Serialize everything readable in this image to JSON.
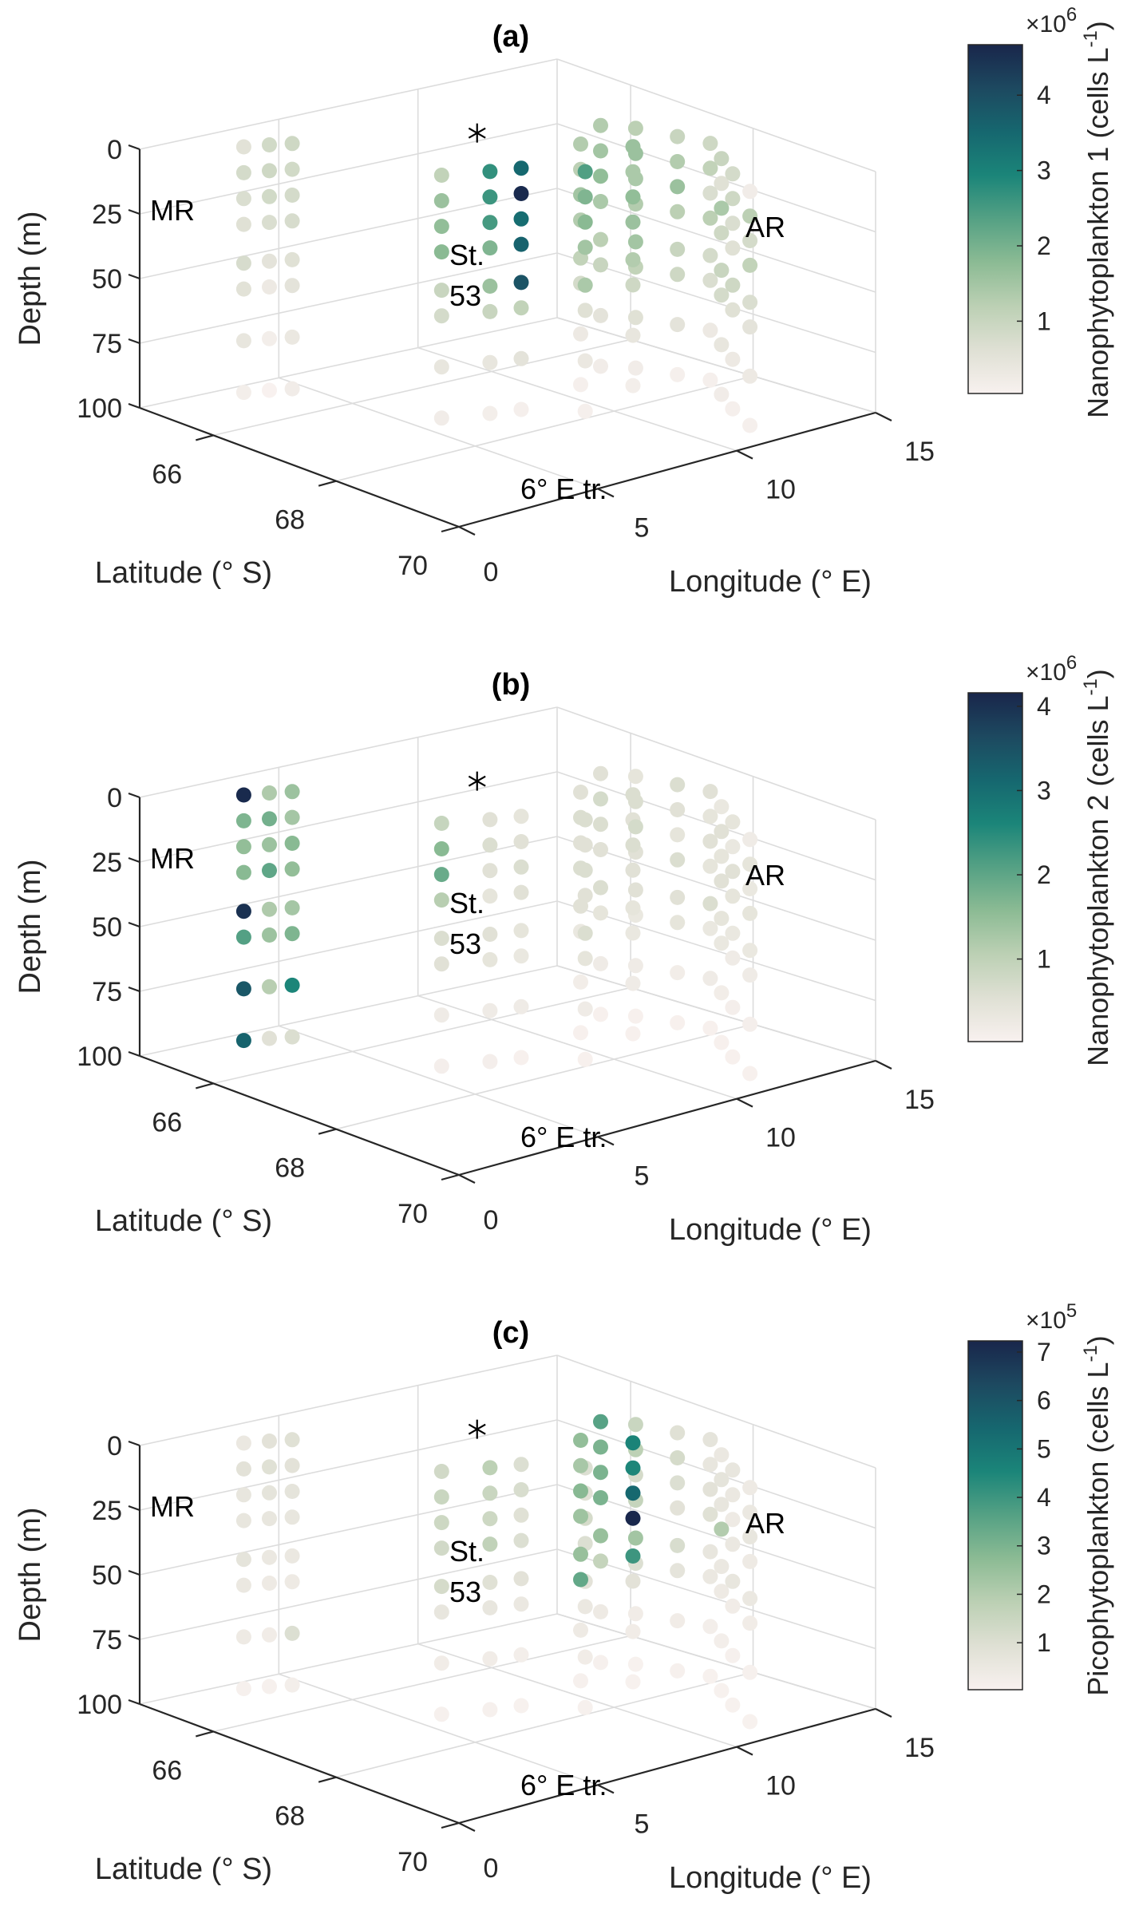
{
  "figure": {
    "panels": [
      "a",
      "b",
      "c"
    ]
  },
  "chart_data": [
    {
      "type": "scatter",
      "subtype": "3d-scatter",
      "title": "(a)",
      "xlabel": "Latitude (° S)",
      "ylabel": "Longitude (° E)",
      "zlabel": "Depth (m)",
      "xlim": [
        64.8,
        70
      ],
      "ylim": [
        0,
        15
      ],
      "zlim": [
        0,
        100
      ],
      "z_reversed": true,
      "xticks": [
        "66",
        "68",
        "70"
      ],
      "yticks": [
        "0",
        "5",
        "10",
        "15"
      ],
      "zticks": [
        "0",
        "25",
        "50",
        "75",
        "100"
      ],
      "grid": true,
      "colorbar": {
        "label": "Nanophytoplankton 1 (cells L",
        "label_sup": "-1",
        "label_end": ")",
        "exponent_label": "×10",
        "exponent": "6",
        "range": [
          0.04,
          4.67
        ],
        "ticks": [
          "1",
          "2",
          "3",
          "4"
        ],
        "placement": "right"
      },
      "annotations": [
        {
          "text": "MR"
        },
        {
          "text": "AR"
        },
        {
          "text": "St."
        },
        {
          "text": "53"
        },
        {
          "text": "6° E tr."
        },
        {
          "text": "✳",
          "role": "marker"
        }
      ],
      "values_by_station": {
        "MR1": [
          0.9,
          0.85,
          0.8,
          0.75,
          0.6,
          0.5,
          0.35,
          0.2
        ],
        "MR2": [
          0.55,
          0.8,
          0.7,
          0.6,
          0.75,
          0.55,
          0.4,
          0.15
        ],
        "MR3": [
          0.85,
          0.9,
          0.85,
          0.7,
          0.5,
          0.3,
          0.15,
          0.05
        ],
        "S53a": [
          1.1,
          1.6,
          1.7,
          1.8,
          1.0,
          0.8,
          0.4,
          0.2
        ],
        "S53b": [
          2.7,
          2.6,
          2.5,
          1.9,
          1.6,
          1.0,
          0.4,
          0.15
        ],
        "S53c": [
          3.5,
          4.6,
          3.4,
          3.6,
          3.9,
          1.1,
          0.5,
          0.1
        ],
        "T6a": [
          2.4,
          1.9,
          1.8,
          1.5,
          1.4,
          0.6,
          0.35,
          0.1
        ],
        "T6b": [
          1.3,
          1.2,
          1.5,
          1.3,
          1.1,
          0.8,
          0.3,
          0.1
        ],
        "T6c": [
          1.6,
          1.4,
          1.7,
          1.6,
          1.3,
          0.9,
          0.4,
          0.15
        ],
        "AR1": [
          1.3,
          1.5,
          1.7,
          1.4,
          1.2,
          1.0,
          0.5,
          0.2
        ],
        "AR2": [
          1.2,
          1.6,
          1.4,
          1.3,
          1.5,
          1.1,
          0.6,
          0.2
        ],
        "AR3": [
          1.0,
          1.3,
          1.6,
          1.2,
          1.0,
          0.9,
          0.5,
          0.1
        ],
        "AR4": [
          0.9,
          1.1,
          0.7,
          1.2,
          0.8,
          0.7,
          0.3,
          0.1
        ],
        "AR5": [
          1.0,
          0.6,
          1.4,
          0.9,
          1.0,
          0.8,
          0.4,
          0.2
        ],
        "AR6": [
          0.8,
          0.9,
          0.7,
          0.6,
          0.9,
          0.6,
          0.3,
          0.1
        ],
        "AR7": [
          0.2,
          1.2,
          0.8,
          1.1,
          0.7,
          0.5,
          0.3,
          0.1
        ]
      }
    },
    {
      "type": "scatter",
      "subtype": "3d-scatter",
      "title": "(b)",
      "xlabel": "Latitude (° S)",
      "ylabel": "Longitude (° E)",
      "zlabel": "Depth (m)",
      "xlim": [
        64.8,
        70
      ],
      "ylim": [
        0,
        15
      ],
      "zlim": [
        0,
        100
      ],
      "z_reversed": true,
      "xticks": [
        "66",
        "68",
        "70"
      ],
      "yticks": [
        "0",
        "5",
        "10",
        "15"
      ],
      "zticks": [
        "0",
        "25",
        "50",
        "75",
        "100"
      ],
      "grid": true,
      "colorbar": {
        "label": "Nanophytoplankton 2 (cells L",
        "label_sup": "-1",
        "label_end": ")",
        "exponent_label": "×10",
        "exponent": "6",
        "range": [
          0.02,
          4.16
        ],
        "ticks": [
          "1",
          "2",
          "3",
          "4"
        ],
        "placement": "right"
      },
      "annotations": [
        {
          "text": "MR"
        },
        {
          "text": "AR"
        },
        {
          "text": "St."
        },
        {
          "text": "53"
        },
        {
          "text": "6° E tr."
        },
        {
          "text": "✳",
          "role": "marker"
        }
      ],
      "values_by_station": {
        "MR1": [
          1.4,
          1.3,
          1.6,
          1.5,
          1.3,
          1.7,
          2.6,
          0.6
        ],
        "MR2": [
          4.1,
          1.7,
          1.5,
          1.6,
          4.0,
          2.1,
          3.4,
          3.2
        ],
        "MR3": [
          1.2,
          1.8,
          1.4,
          2.0,
          1.2,
          1.4,
          1.1,
          0.5
        ],
        "S53a": [
          0.9,
          1.6,
          1.9,
          1.1,
          0.6,
          0.5,
          0.2,
          0.1
        ],
        "S53b": [
          0.5,
          0.6,
          0.5,
          0.4,
          0.5,
          0.4,
          0.2,
          0.1
        ],
        "S53c": [
          0.4,
          0.5,
          0.6,
          0.5,
          0.4,
          0.3,
          0.2,
          0.05
        ],
        "T6a": [
          0.6,
          0.5,
          0.6,
          0.5,
          0.6,
          0.4,
          0.2,
          0.05
        ],
        "T6b": [
          0.5,
          0.6,
          0.5,
          0.6,
          0.5,
          0.3,
          0.15,
          0.05
        ],
        "T6c": [
          0.6,
          0.5,
          0.6,
          0.5,
          0.4,
          0.3,
          0.2,
          0.05
        ],
        "AR1": [
          0.5,
          0.7,
          0.6,
          0.5,
          0.6,
          0.4,
          0.2,
          0.05
        ],
        "AR2": [
          0.4,
          0.6,
          0.7,
          0.5,
          0.5,
          0.3,
          0.2,
          0.05
        ],
        "AR3": [
          0.6,
          0.5,
          0.4,
          0.6,
          0.5,
          0.4,
          0.15,
          0.05
        ],
        "AR4": [
          0.5,
          0.4,
          0.5,
          0.4,
          0.6,
          0.3,
          0.2,
          0.05
        ],
        "AR5": [
          0.3,
          0.5,
          0.4,
          0.5,
          0.4,
          0.3,
          0.15,
          0.05
        ],
        "AR6": [
          0.4,
          0.3,
          0.5,
          0.4,
          0.3,
          0.2,
          0.1,
          0.05
        ],
        "AR7": [
          0.2,
          0.4,
          0.3,
          0.4,
          0.3,
          0.2,
          0.1,
          0.05
        ]
      }
    },
    {
      "type": "scatter",
      "subtype": "3d-scatter",
      "title": "(c)",
      "xlabel": "Latitude (° S)",
      "ylabel": "Longitude (° E)",
      "zlabel": "Depth (m)",
      "xlim": [
        64.8,
        70
      ],
      "ylim": [
        0,
        15
      ],
      "zlim": [
        0,
        100
      ],
      "z_reversed": true,
      "xticks": [
        "66",
        "68",
        "70"
      ],
      "yticks": [
        "0",
        "5",
        "10",
        "15"
      ],
      "zticks": [
        "0",
        "25",
        "50",
        "75",
        "100"
      ],
      "grid": true,
      "colorbar": {
        "label": "Picophytoplankton (cells L",
        "label_sup": "-1",
        "label_end": ")",
        "exponent_label": "×10",
        "exponent": "5",
        "range": [
          0.03,
          7.23
        ],
        "ticks": [
          "1",
          "2",
          "3",
          "4",
          "5",
          "6",
          "7"
        ],
        "placement": "right"
      },
      "annotations": [
        {
          "text": "MR"
        },
        {
          "text": "AR"
        },
        {
          "text": "St."
        },
        {
          "text": "53"
        },
        {
          "text": "6° E tr."
        },
        {
          "text": "✳",
          "role": "marker"
        }
      ],
      "values_by_station": {
        "MR1": [
          0.9,
          0.8,
          0.7,
          0.6,
          0.5,
          0.4,
          1.0,
          0.2
        ],
        "MR2": [
          0.5,
          0.8,
          0.6,
          0.6,
          0.7,
          0.5,
          0.4,
          0.1
        ],
        "MR3": [
          0.8,
          0.9,
          0.7,
          0.6,
          0.5,
          0.4,
          0.3,
          0.1
        ],
        "S53a": [
          1.3,
          1.5,
          1.4,
          1.3,
          1.2,
          0.6,
          0.3,
          0.1
        ],
        "S53b": [
          1.8,
          1.5,
          1.4,
          1.7,
          0.9,
          0.6,
          0.3,
          0.1
        ],
        "S53c": [
          1.0,
          1.1,
          0.9,
          1.0,
          0.8,
          0.5,
          0.2,
          0.05
        ],
        "T6a": [
          1.0,
          0.9,
          1.2,
          1.0,
          0.8,
          0.5,
          0.3,
          0.1
        ],
        "T6b": [
          2.6,
          2.2,
          2.8,
          2.4,
          2.5,
          3.4,
          0.4,
          0.1
        ],
        "T6c": [
          4.6,
          4.5,
          5.4,
          7.2,
          4.0,
          0.8,
          0.3,
          0.05
        ],
        "AR1": [
          3.6,
          3.0,
          3.0,
          3.0,
          2.5,
          1.6,
          0.4,
          0.1
        ],
        "AR2": [
          1.5,
          1.8,
          1.2,
          1.6,
          2.3,
          1.0,
          0.3,
          0.05
        ],
        "AR3": [
          0.9,
          1.2,
          1.0,
          0.8,
          1.1,
          0.7,
          0.3,
          0.1
        ],
        "AR4": [
          0.7,
          0.6,
          0.8,
          0.9,
          0.6,
          0.5,
          0.2,
          0.05
        ],
        "AR5": [
          0.5,
          0.7,
          0.6,
          2.0,
          0.5,
          0.4,
          0.2,
          0.05
        ],
        "AR6": [
          0.6,
          0.5,
          0.4,
          0.5,
          0.6,
          0.3,
          0.1,
          0.05
        ],
        "AR7": [
          0.4,
          0.5,
          0.6,
          0.4,
          0.5,
          0.3,
          0.1,
          0.05
        ]
      }
    }
  ],
  "stations": [
    {
      "id": "MR1",
      "lat": 65.2,
      "lon": 4.6
    },
    {
      "id": "MR2",
      "lat": 65.0,
      "lon": 3.3
    },
    {
      "id": "MR3",
      "lat": 65.1,
      "lon": 4.0
    },
    {
      "id": "S53a",
      "lat": 67.0,
      "lon": 6.0
    },
    {
      "id": "S53b",
      "lat": 67.2,
      "lon": 7.3
    },
    {
      "id": "S53c",
      "lat": 67.3,
      "lon": 8.2
    },
    {
      "id": "T6a",
      "lat": 67.8,
      "lon": 9.4
    },
    {
      "id": "T6b",
      "lat": 67.0,
      "lon": 11.0
    },
    {
      "id": "T6c",
      "lat": 67.4,
      "lon": 12.0
    },
    {
      "id": "AR1",
      "lat": 66.6,
      "lon": 12.6
    },
    {
      "id": "AR2",
      "lat": 66.9,
      "lon": 13.2
    },
    {
      "id": "AR3",
      "lat": 67.4,
      "lon": 13.6
    },
    {
      "id": "AR4",
      "lat": 67.8,
      "lon": 13.9
    },
    {
      "id": "AR5",
      "lat": 68.3,
      "lon": 13.2
    },
    {
      "id": "AR6",
      "lat": 68.8,
      "lon": 12.5
    },
    {
      "id": "AR7",
      "lat": 69.4,
      "lon": 11.8
    }
  ],
  "sample_depths_m": [
    5,
    15,
    25,
    35,
    50,
    60,
    80,
    100
  ],
  "colormap": [
    "#f8f1ef",
    "#dfe0d4",
    "#bcd0b4",
    "#8cbb94",
    "#55a184",
    "#1b8579",
    "#16676f",
    "#1d4960",
    "#19264b"
  ],
  "star_marker": {
    "lat": 66.4,
    "lon": 8.6,
    "depth": 0
  }
}
